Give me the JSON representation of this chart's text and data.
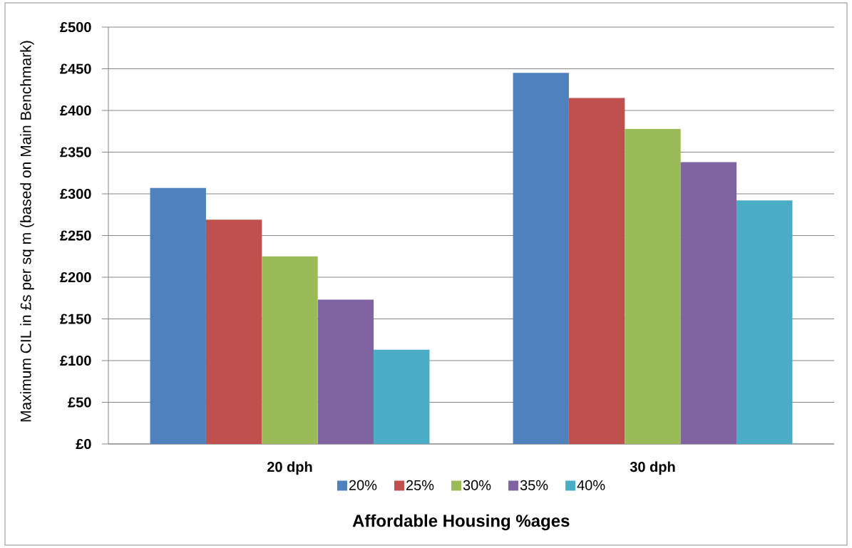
{
  "chart_data": {
    "type": "bar",
    "categories": [
      "20 dph",
      "30 dph"
    ],
    "series": [
      {
        "name": "20%",
        "color": "#4f81bd",
        "values": [
          307,
          445
        ]
      },
      {
        "name": "25%",
        "color": "#c0504d",
        "values": [
          269,
          415
        ]
      },
      {
        "name": "30%",
        "color": "#9bbb59",
        "values": [
          225,
          378
        ]
      },
      {
        "name": "35%",
        "color": "#8064a2",
        "values": [
          173,
          338
        ]
      },
      {
        "name": "40%",
        "color": "#4bacc6",
        "values": [
          113,
          292
        ]
      }
    ],
    "xlabel": "Affordable Housing %ages",
    "ylabel": "Maximum CIL in £s per sq m (based on Main Benchmark)",
    "ylim": [
      0,
      500
    ],
    "yticks": [
      {
        "value": 0,
        "label": "£0"
      },
      {
        "value": 50,
        "label": "£50"
      },
      {
        "value": 100,
        "label": "£100"
      },
      {
        "value": 150,
        "label": "£150"
      },
      {
        "value": 200,
        "label": "£200"
      },
      {
        "value": 250,
        "label": "£250"
      },
      {
        "value": 300,
        "label": "£300"
      },
      {
        "value": 350,
        "label": "£350"
      },
      {
        "value": 400,
        "label": "£400"
      },
      {
        "value": 450,
        "label": "£450"
      },
      {
        "value": 500,
        "label": "£500"
      }
    ],
    "grid": "y",
    "legend": "bottom"
  }
}
